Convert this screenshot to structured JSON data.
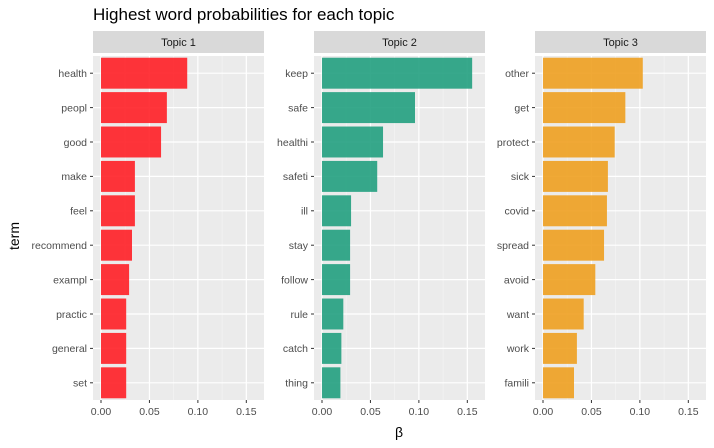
{
  "chart_data": {
    "type": "bar",
    "orientation": "horizontal",
    "facet": true,
    "title": "Highest word probabilities for each topic",
    "xlabel": "β",
    "ylabel": "term",
    "xlim": [
      0,
      0.16
    ],
    "xticks": [
      0.0,
      0.05,
      0.1,
      0.15
    ],
    "xtick_labels": [
      "0.00",
      "0.05",
      "0.10",
      "0.15"
    ],
    "grid": true,
    "legend": "none",
    "panels": [
      {
        "name": "Topic 1",
        "color": "#FF1F26",
        "categories": [
          "health",
          "peopl",
          "good",
          "make",
          "feel",
          "recommend",
          "exampl",
          "practic",
          "general",
          "set"
        ],
        "values": [
          0.089,
          0.068,
          0.062,
          0.035,
          0.035,
          0.032,
          0.029,
          0.026,
          0.026,
          0.026
        ]
      },
      {
        "name": "Topic 2",
        "color": "#22A07F",
        "categories": [
          "keep",
          "safe",
          "healthi",
          "safeti",
          "ill",
          "stay",
          "follow",
          "rule",
          "catch",
          "thing"
        ],
        "values": [
          0.155,
          0.096,
          0.063,
          0.057,
          0.03,
          0.029,
          0.029,
          0.022,
          0.02,
          0.019
        ]
      },
      {
        "name": "Topic 3",
        "color": "#EEA020",
        "categories": [
          "other",
          "get",
          "protect",
          "sick",
          "covid",
          "spread",
          "avoid",
          "want",
          "work",
          "famili"
        ],
        "values": [
          0.103,
          0.085,
          0.074,
          0.067,
          0.066,
          0.063,
          0.054,
          0.042,
          0.035,
          0.032
        ]
      }
    ]
  }
}
